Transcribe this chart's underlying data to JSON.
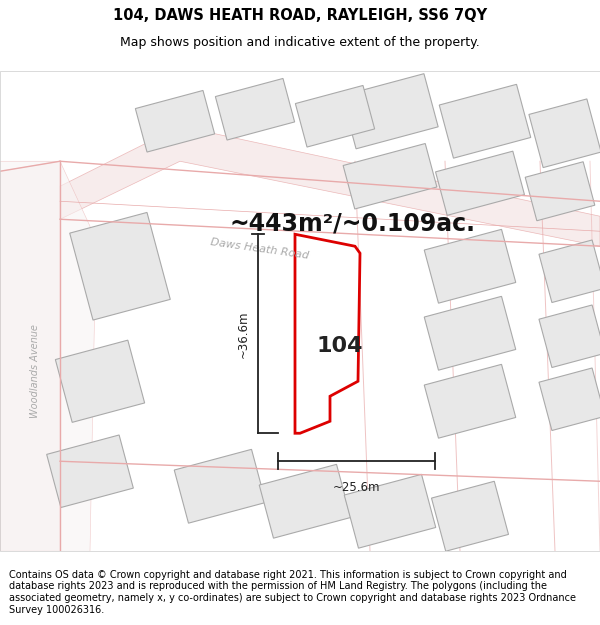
{
  "title_line1": "104, DAWS HEATH ROAD, RAYLEIGH, SS6 7QY",
  "title_line2": "Map shows position and indicative extent of the property.",
  "area_label": "~443m²/~0.109ac.",
  "property_number": "104",
  "dim_vertical": "~36.6m",
  "dim_horizontal": "~25.6m",
  "avenue_label": "Woodlands Avenue",
  "street_label": "Daws Heath Road",
  "footer_text": "Contains OS data © Crown copyright and database right 2021. This information is subject to Crown copyright and database rights 2023 and is reproduced with the permission of HM Land Registry. The polygons (including the associated geometry, namely x, y co-ordinates) are subject to Crown copyright and database rights 2023 Ordnance Survey 100026316.",
  "bg_color": "#ffffff",
  "map_bg": "#ffffff",
  "road_line_color": "#e8aaaa",
  "road_fill_color": "#f5e8e8",
  "property_fill": "#ffffff",
  "property_edge": "#dd0000",
  "building_fill": "#e8e8e8",
  "building_edge": "#aaaaaa",
  "road_area_fill": "#f0e8e8",
  "dim_color": "#222222",
  "street_color": "#aaaaaa",
  "title_fontsize": 10.5,
  "subtitle_fontsize": 9,
  "area_fontsize": 17,
  "num_fontsize": 16,
  "footer_fontsize": 7
}
